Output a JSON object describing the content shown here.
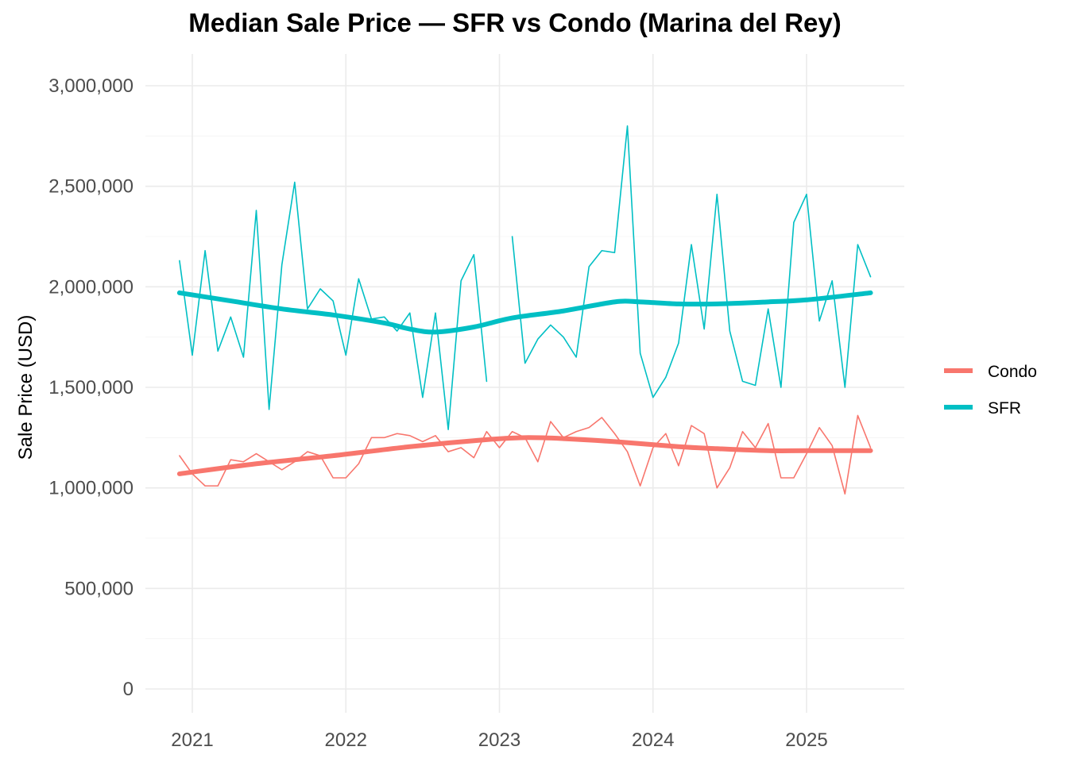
{
  "chart_data": {
    "type": "line",
    "title": "Median Sale Price — SFR vs Condo (Marina del Rey)",
    "xlabel": "",
    "ylabel": "Sale Price (USD)",
    "ylim": [
      0,
      3000000
    ],
    "xlim": [
      2020.9,
      2025.45
    ],
    "y_ticks": [
      0,
      500000,
      1000000,
      1500000,
      2000000,
      2500000,
      3000000
    ],
    "y_tick_labels": [
      "0",
      "500,000",
      "1,000,000",
      "1,500,000",
      "2,000,000",
      "2,500,000",
      "3,000,000"
    ],
    "x_ticks": [
      2021,
      2022,
      2023,
      2024,
      2025
    ],
    "x_tick_labels": [
      "2021",
      "2022",
      "2023",
      "2024",
      "2025"
    ],
    "grid": true,
    "legend_position": "right",
    "legend": [
      {
        "name": "Condo",
        "color": "#F8766D"
      },
      {
        "name": "SFR",
        "color": "#00BFC4"
      }
    ],
    "series": [
      {
        "name": "SFR",
        "kind": "monthly",
        "color": "#00BFC4",
        "points": [
          [
            "2020-12",
            2130000
          ],
          [
            "2021-01",
            1660000
          ],
          [
            "2021-02",
            2180000
          ],
          [
            "2021-03",
            1680000
          ],
          [
            "2021-04",
            1850000
          ],
          [
            "2021-05",
            1650000
          ],
          [
            "2021-06",
            2380000
          ],
          [
            "2021-07",
            1390000
          ],
          [
            "2021-08",
            2110000
          ],
          [
            "2021-09",
            2520000
          ],
          [
            "2021-10",
            1890000
          ],
          [
            "2021-11",
            1990000
          ],
          [
            "2021-12",
            1930000
          ],
          [
            "2022-01",
            1660000
          ],
          [
            "2022-02",
            2040000
          ],
          [
            "2022-03",
            1840000
          ],
          [
            "2022-04",
            1850000
          ],
          [
            "2022-05",
            1780000
          ],
          [
            "2022-06",
            1870000
          ],
          [
            "2022-07",
            1450000
          ],
          [
            "2022-08",
            1870000
          ],
          [
            "2022-09",
            1290000
          ],
          [
            "2022-10",
            2030000
          ],
          [
            "2022-11",
            2160000
          ],
          [
            "2022-12",
            1530000
          ],
          [
            "2023-01",
            null
          ],
          [
            "2023-02",
            2250000
          ],
          [
            "2023-03",
            1620000
          ],
          [
            "2023-04",
            1740000
          ],
          [
            "2023-05",
            1810000
          ],
          [
            "2023-06",
            1750000
          ],
          [
            "2023-07",
            1650000
          ],
          [
            "2023-08",
            2100000
          ],
          [
            "2023-09",
            2180000
          ],
          [
            "2023-10",
            2170000
          ],
          [
            "2023-11",
            2800000
          ],
          [
            "2023-12",
            1670000
          ],
          [
            "2024-01",
            1450000
          ],
          [
            "2024-02",
            1550000
          ],
          [
            "2024-03",
            1720000
          ],
          [
            "2024-04",
            2210000
          ],
          [
            "2024-05",
            1790000
          ],
          [
            "2024-06",
            2460000
          ],
          [
            "2024-07",
            1780000
          ],
          [
            "2024-08",
            1530000
          ],
          [
            "2024-09",
            1510000
          ],
          [
            "2024-10",
            1890000
          ],
          [
            "2024-11",
            1500000
          ],
          [
            "2024-12",
            2320000
          ],
          [
            "2025-01",
            2460000
          ],
          [
            "2025-02",
            1830000
          ],
          [
            "2025-03",
            2030000
          ],
          [
            "2025-04",
            1500000
          ],
          [
            "2025-05",
            2210000
          ],
          [
            "2025-06",
            2050000
          ]
        ]
      },
      {
        "name": "Condo",
        "kind": "monthly",
        "color": "#F8766D",
        "points": [
          [
            "2020-12",
            1160000
          ],
          [
            "2021-01",
            1070000
          ],
          [
            "2021-02",
            1010000
          ],
          [
            "2021-03",
            1010000
          ],
          [
            "2021-04",
            1140000
          ],
          [
            "2021-05",
            1130000
          ],
          [
            "2021-06",
            1170000
          ],
          [
            "2021-07",
            1130000
          ],
          [
            "2021-08",
            1090000
          ],
          [
            "2021-09",
            1130000
          ],
          [
            "2021-10",
            1180000
          ],
          [
            "2021-11",
            1160000
          ],
          [
            "2021-12",
            1050000
          ],
          [
            "2022-01",
            1050000
          ],
          [
            "2022-02",
            1120000
          ],
          [
            "2022-03",
            1250000
          ],
          [
            "2022-04",
            1250000
          ],
          [
            "2022-05",
            1270000
          ],
          [
            "2022-06",
            1260000
          ],
          [
            "2022-07",
            1230000
          ],
          [
            "2022-08",
            1260000
          ],
          [
            "2022-09",
            1180000
          ],
          [
            "2022-10",
            1200000
          ],
          [
            "2022-11",
            1150000
          ],
          [
            "2022-12",
            1280000
          ],
          [
            "2023-01",
            1200000
          ],
          [
            "2023-02",
            1280000
          ],
          [
            "2023-03",
            1250000
          ],
          [
            "2023-04",
            1130000
          ],
          [
            "2023-05",
            1330000
          ],
          [
            "2023-06",
            1250000
          ],
          [
            "2023-07",
            1280000
          ],
          [
            "2023-08",
            1300000
          ],
          [
            "2023-09",
            1350000
          ],
          [
            "2023-10",
            1270000
          ],
          [
            "2023-11",
            1180000
          ],
          [
            "2023-12",
            1010000
          ],
          [
            "2024-01",
            1200000
          ],
          [
            "2024-02",
            1270000
          ],
          [
            "2024-03",
            1110000
          ],
          [
            "2024-04",
            1310000
          ],
          [
            "2024-05",
            1270000
          ],
          [
            "2024-06",
            1000000
          ],
          [
            "2024-07",
            1100000
          ],
          [
            "2024-08",
            1280000
          ],
          [
            "2024-09",
            1200000
          ],
          [
            "2024-10",
            1320000
          ],
          [
            "2024-11",
            1050000
          ],
          [
            "2024-12",
            1050000
          ],
          [
            "2025-01",
            1170000
          ],
          [
            "2025-02",
            1300000
          ],
          [
            "2025-03",
            1210000
          ],
          [
            "2025-04",
            970000
          ],
          [
            "2025-05",
            1360000
          ],
          [
            "2025-06",
            1200000
          ]
        ]
      },
      {
        "name": "SFR",
        "kind": "smoothed",
        "color": "#00BFC4",
        "points": [
          [
            "2020-12",
            1970000
          ],
          [
            "2021-04",
            1930000
          ],
          [
            "2021-08",
            1890000
          ],
          [
            "2021-12",
            1860000
          ],
          [
            "2022-04",
            1820000
          ],
          [
            "2022-06",
            1790000
          ],
          [
            "2022-08",
            1775000
          ],
          [
            "2022-11",
            1800000
          ],
          [
            "2023-02",
            1845000
          ],
          [
            "2023-06",
            1880000
          ],
          [
            "2023-10",
            1925000
          ],
          [
            "2023-12",
            1925000
          ],
          [
            "2024-03",
            1915000
          ],
          [
            "2024-06",
            1915000
          ],
          [
            "2024-10",
            1925000
          ],
          [
            "2025-01",
            1935000
          ],
          [
            "2025-06",
            1970000
          ]
        ]
      },
      {
        "name": "Condo",
        "kind": "smoothed",
        "color": "#F8766D",
        "points": [
          [
            "2020-12",
            1070000
          ],
          [
            "2021-06",
            1120000
          ],
          [
            "2021-12",
            1160000
          ],
          [
            "2022-06",
            1205000
          ],
          [
            "2022-12",
            1240000
          ],
          [
            "2023-03",
            1250000
          ],
          [
            "2023-06",
            1245000
          ],
          [
            "2023-10",
            1230000
          ],
          [
            "2024-03",
            1205000
          ],
          [
            "2024-06",
            1195000
          ],
          [
            "2024-10",
            1185000
          ],
          [
            "2025-01",
            1185000
          ],
          [
            "2025-06",
            1185000
          ]
        ]
      }
    ]
  }
}
